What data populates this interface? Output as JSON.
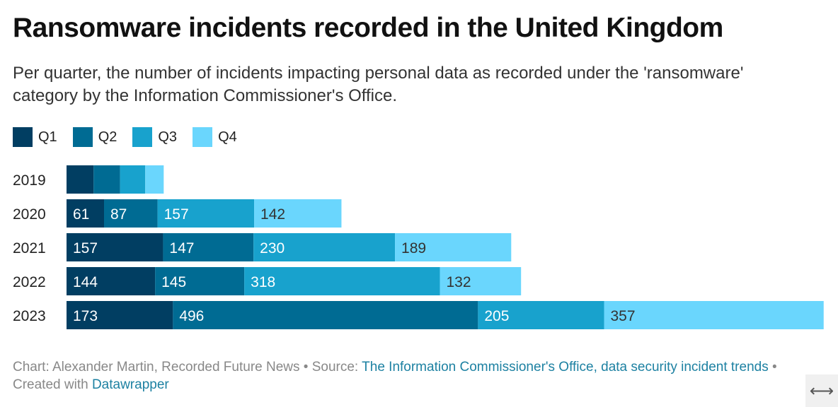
{
  "title": "Ransomware incidents recorded in the United Kingdom",
  "subtitle": "Per quarter, the number of incidents impacting personal data as recorded under the 'ransomware' category by the Information Commissioner's Office.",
  "chart_data": {
    "type": "bar",
    "orientation": "horizontal",
    "stacked": true,
    "categories": [
      "2019",
      "2020",
      "2021",
      "2022",
      "2023"
    ],
    "series": [
      {
        "name": "Q1",
        "color": "#013e62",
        "values": [
          44,
          61,
          157,
          144,
          173
        ]
      },
      {
        "name": "Q2",
        "color": "#006b93",
        "values": [
          43,
          87,
          147,
          145,
          496
        ]
      },
      {
        "name": "Q3",
        "color": "#18a2cd",
        "values": [
          41,
          157,
          230,
          318,
          205
        ]
      },
      {
        "name": "Q4",
        "color": "#6ad6fd",
        "values": [
          30,
          142,
          189,
          132,
          357
        ]
      }
    ],
    "labels_shown": [
      false,
      true,
      true,
      true,
      true
    ],
    "legend": "top-left",
    "grid": false
  },
  "footer": {
    "chart_prefix": "Chart: Alexander Martin, Recorded Future News • Source: ",
    "source_link": "The Information Commissioner's Office, data security incident trends",
    "created_prefix": " • Created with ",
    "datawrapper_link": "Datawrapper"
  },
  "expand_icon": "horizontal-arrows-icon",
  "expand_glyph": "⟷"
}
